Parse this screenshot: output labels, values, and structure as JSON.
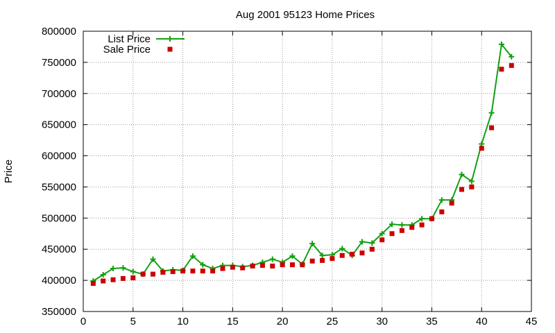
{
  "chart_data": {
    "type": "line",
    "title": "Aug 2001 95123 Home Prices",
    "xlabel": "",
    "ylabel": "Price",
    "xlim": [
      0,
      45
    ],
    "ylim": [
      350000,
      800000
    ],
    "x_ticks": [
      0,
      5,
      10,
      15,
      20,
      25,
      30,
      35,
      40,
      45
    ],
    "y_ticks": [
      350000,
      400000,
      450000,
      500000,
      550000,
      600000,
      650000,
      700000,
      750000,
      800000
    ],
    "grid": true,
    "legend_position": "top-left",
    "series": [
      {
        "name": "List Price",
        "style": "line+cross",
        "color": "#11a011",
        "x": [
          1,
          2,
          3,
          4,
          5,
          6,
          7,
          8,
          9,
          10,
          11,
          12,
          13,
          14,
          15,
          16,
          17,
          18,
          19,
          20,
          21,
          22,
          23,
          24,
          25,
          26,
          27,
          28,
          29,
          30,
          31,
          32,
          33,
          34,
          35,
          36,
          37,
          38,
          39,
          40,
          41,
          42,
          43
        ],
        "values": [
          399000,
          409000,
          419000,
          420000,
          414000,
          410000,
          434000,
          415000,
          417000,
          416000,
          439000,
          425000,
          419000,
          424000,
          424000,
          422000,
          424000,
          429000,
          434000,
          429000,
          439000,
          426000,
          459000,
          440000,
          441000,
          451000,
          440000,
          462000,
          460000,
          475000,
          490000,
          489000,
          489000,
          499000,
          499000,
          529000,
          529000,
          570000,
          559000,
          619000,
          669000,
          779000,
          759000
        ]
      },
      {
        "name": "Sale Price",
        "style": "square",
        "color": "#cc0000",
        "x": [
          1,
          2,
          3,
          4,
          5,
          6,
          7,
          8,
          9,
          10,
          11,
          12,
          13,
          14,
          15,
          16,
          17,
          18,
          19,
          20,
          21,
          22,
          23,
          24,
          25,
          26,
          27,
          28,
          29,
          30,
          31,
          32,
          33,
          34,
          35,
          36,
          37,
          38,
          39,
          40,
          41,
          42,
          43
        ],
        "values": [
          395000,
          399000,
          401000,
          403000,
          404000,
          410000,
          410000,
          413000,
          414000,
          415000,
          415000,
          415000,
          415000,
          419000,
          421000,
          420000,
          423000,
          424000,
          423000,
          425000,
          425000,
          425000,
          431000,
          432000,
          435000,
          440000,
          442000,
          444000,
          450000,
          465000,
          475000,
          480000,
          485000,
          489000,
          499000,
          510000,
          524000,
          546000,
          550000,
          612000,
          645000,
          739000,
          745000
        ]
      }
    ]
  }
}
